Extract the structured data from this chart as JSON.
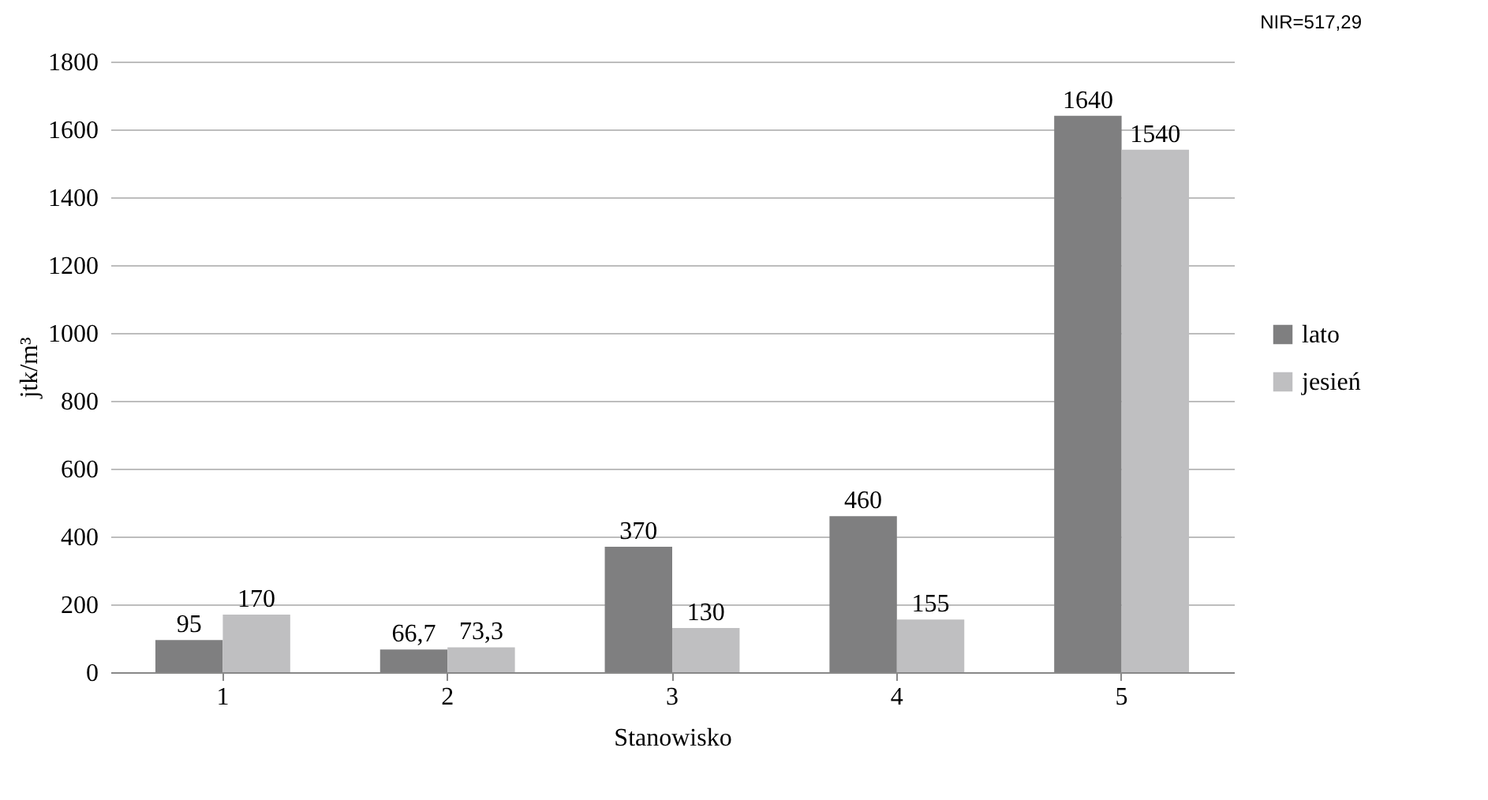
{
  "chart_data": {
    "type": "bar",
    "xlabel": "Stanowisko",
    "ylabel": "jtk/m³",
    "categories": [
      "1",
      "2",
      "3",
      "4",
      "5"
    ],
    "series": [
      {
        "name": "lato",
        "color": "#7f7f80",
        "values": [
          95,
          66.7,
          370,
          460,
          1640
        ],
        "value_labels": [
          "95",
          "66,7",
          "370",
          "460",
          "1640"
        ]
      },
      {
        "name": "jesień",
        "color": "#bfbfc1",
        "values": [
          170,
          73.3,
          130,
          155,
          1540
        ],
        "value_labels": [
          "170",
          "73,3",
          "130",
          "155",
          "1540"
        ]
      }
    ],
    "ylim": [
      0,
      1800
    ],
    "yticks": [
      0,
      200,
      400,
      600,
      800,
      1000,
      1200,
      1400,
      1600,
      1800
    ],
    "grid": "y",
    "legend": "right",
    "annotations": [
      "NIR=517,29"
    ]
  }
}
